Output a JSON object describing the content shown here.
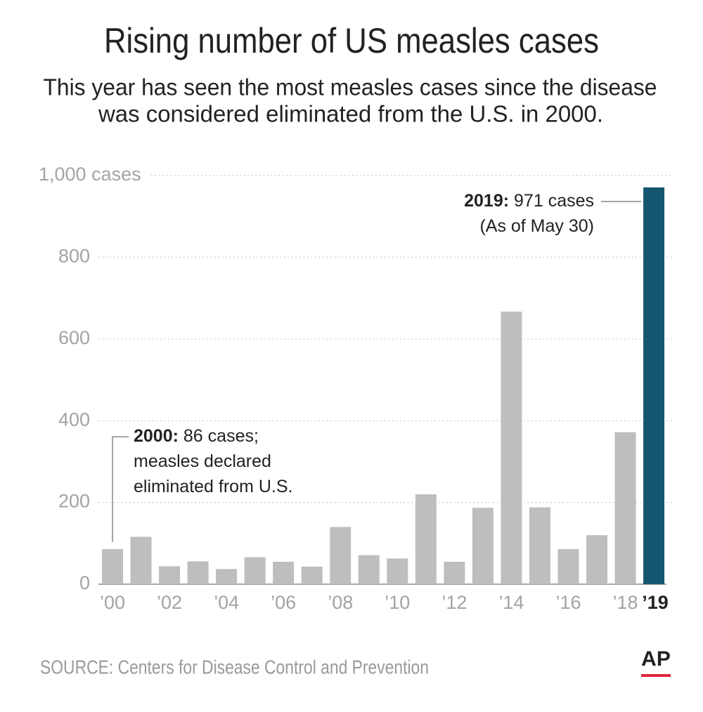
{
  "chart_data": {
    "type": "bar",
    "title": "Rising number of US measles cases",
    "subtitle": [
      "This year has seen the most measles cases since the disease",
      "was considered eliminated from the U.S. in 2000."
    ],
    "categories": [
      "’00",
      null,
      "’02",
      null,
      "’04",
      null,
      "’06",
      null,
      "’08",
      null,
      "’10",
      null,
      "’12",
      null,
      "’14",
      null,
      "’16",
      null,
      "’18",
      "’19"
    ],
    "values": [
      86,
      116,
      44,
      56,
      37,
      66,
      55,
      43,
      140,
      71,
      63,
      220,
      55,
      187,
      667,
      188,
      86,
      120,
      372,
      971
    ],
    "colors": [
      "#bdbebf",
      "#bdbebf",
      "#bdbebf",
      "#bdbebf",
      "#bdbebf",
      "#bdbebf",
      "#bdbebf",
      "#bdbebf",
      "#bdbebf",
      "#bdbebf",
      "#bdbebf",
      "#bdbebf",
      "#bdbebf",
      "#bdbebf",
      "#bdbebf",
      "#bdbebf",
      "#bdbebf",
      "#bdbebf",
      "#bdbebf",
      "#14566f"
    ],
    "ylim": [
      0,
      1000
    ],
    "yticks": [
      0,
      200,
      400,
      600,
      800,
      {
        "value": 1000,
        "label": "1,000 cases"
      }
    ],
    "grid": true,
    "annotations": [
      {
        "bold": "2000:",
        "lines": [
          "86 cases;",
          "measles declared",
          "eliminated from U.S."
        ]
      },
      {
        "bold": "2019:",
        "lines": [
          "971 cases",
          "(As of May 30)"
        ]
      }
    ],
    "source": "SOURCE: Centers for Disease Control and Prevention",
    "logo": "AP"
  }
}
